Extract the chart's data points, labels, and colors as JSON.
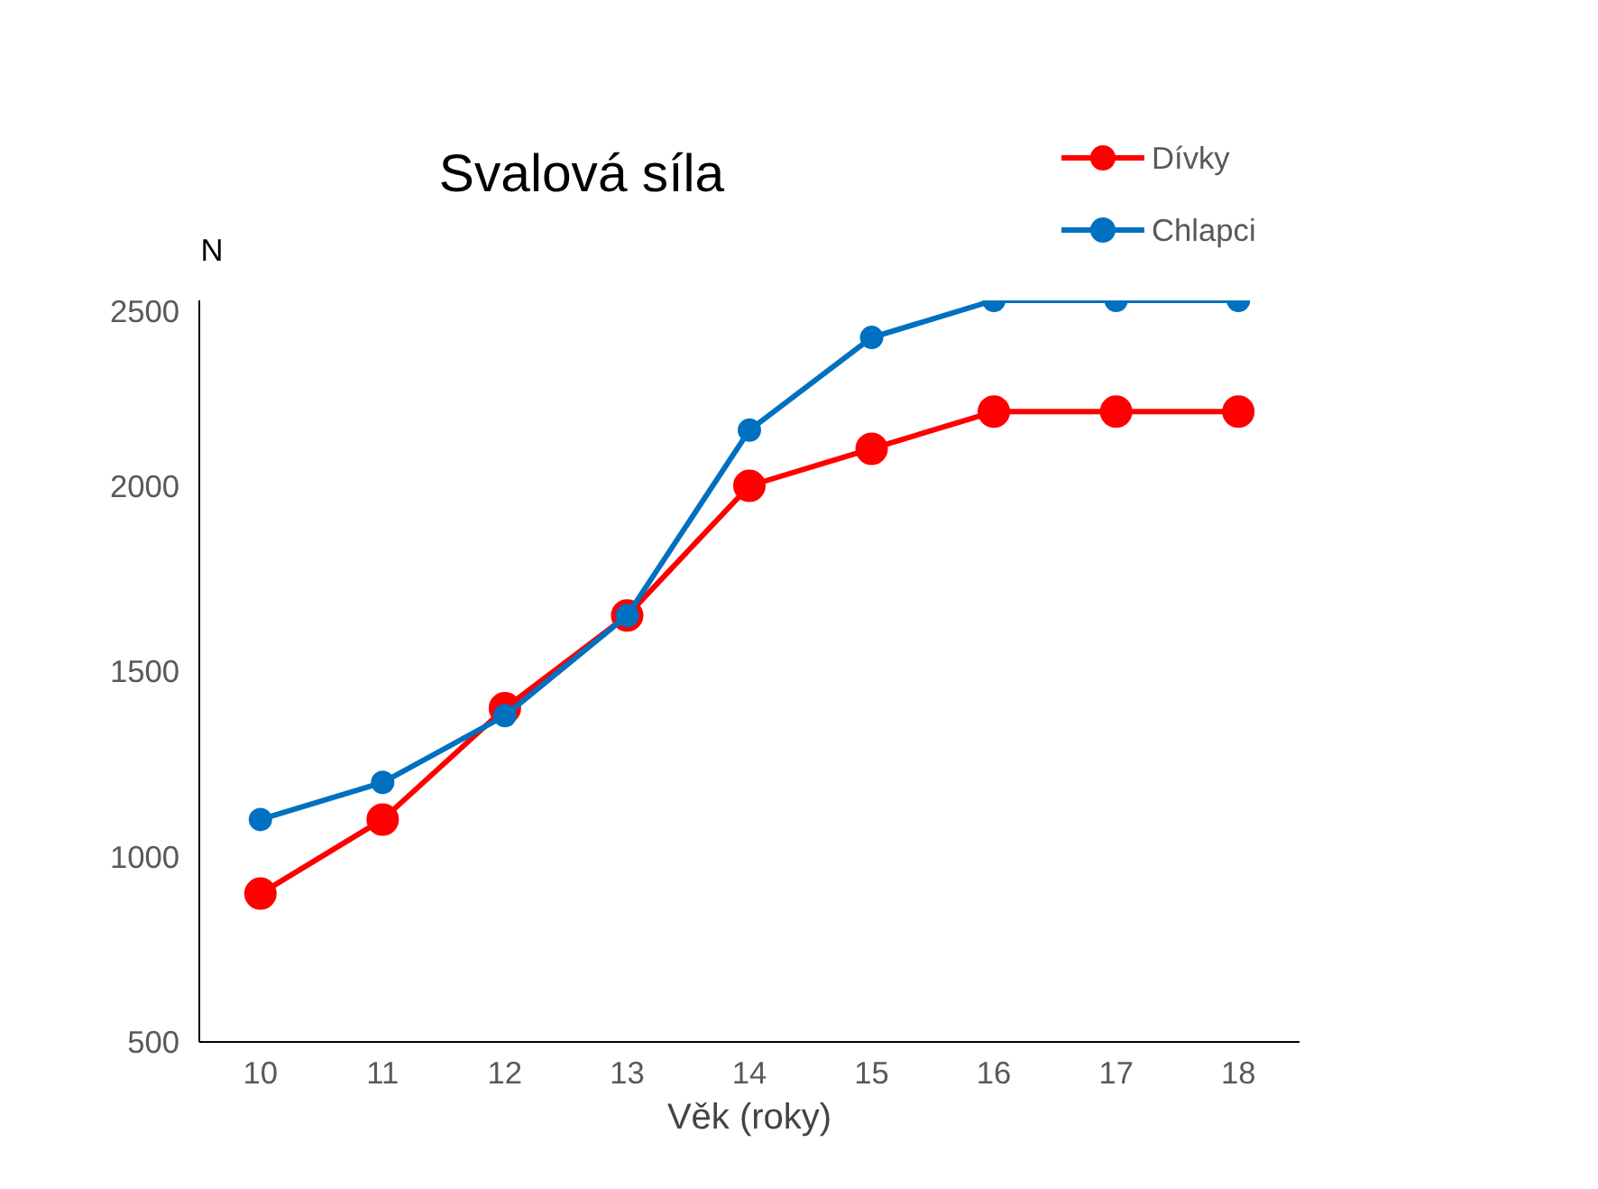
{
  "chart_data": {
    "type": "line",
    "title": "Svalová síla",
    "xlabel": "Věk (roky)",
    "ylabel": "N",
    "categories": [
      "10",
      "11",
      "12",
      "13",
      "14",
      "15",
      "16",
      "17",
      "18"
    ],
    "series": [
      {
        "name": "Dívky",
        "color": "#ff0000",
        "values": [
          900,
          1100,
          1400,
          1650,
          2000,
          2100,
          2200,
          2200,
          2200
        ]
      },
      {
        "name": "Chlapci",
        "color": "#0070c0",
        "values": [
          1100,
          1200,
          1380,
          1650,
          2150,
          2400,
          2500,
          2500,
          2500
        ]
      }
    ],
    "ylim": [
      500,
      2500
    ],
    "yticks": [
      500,
      1000,
      1500,
      2000,
      2500
    ],
    "grid": false,
    "legend": "top right",
    "marker": "circle",
    "line_style": "solid"
  }
}
